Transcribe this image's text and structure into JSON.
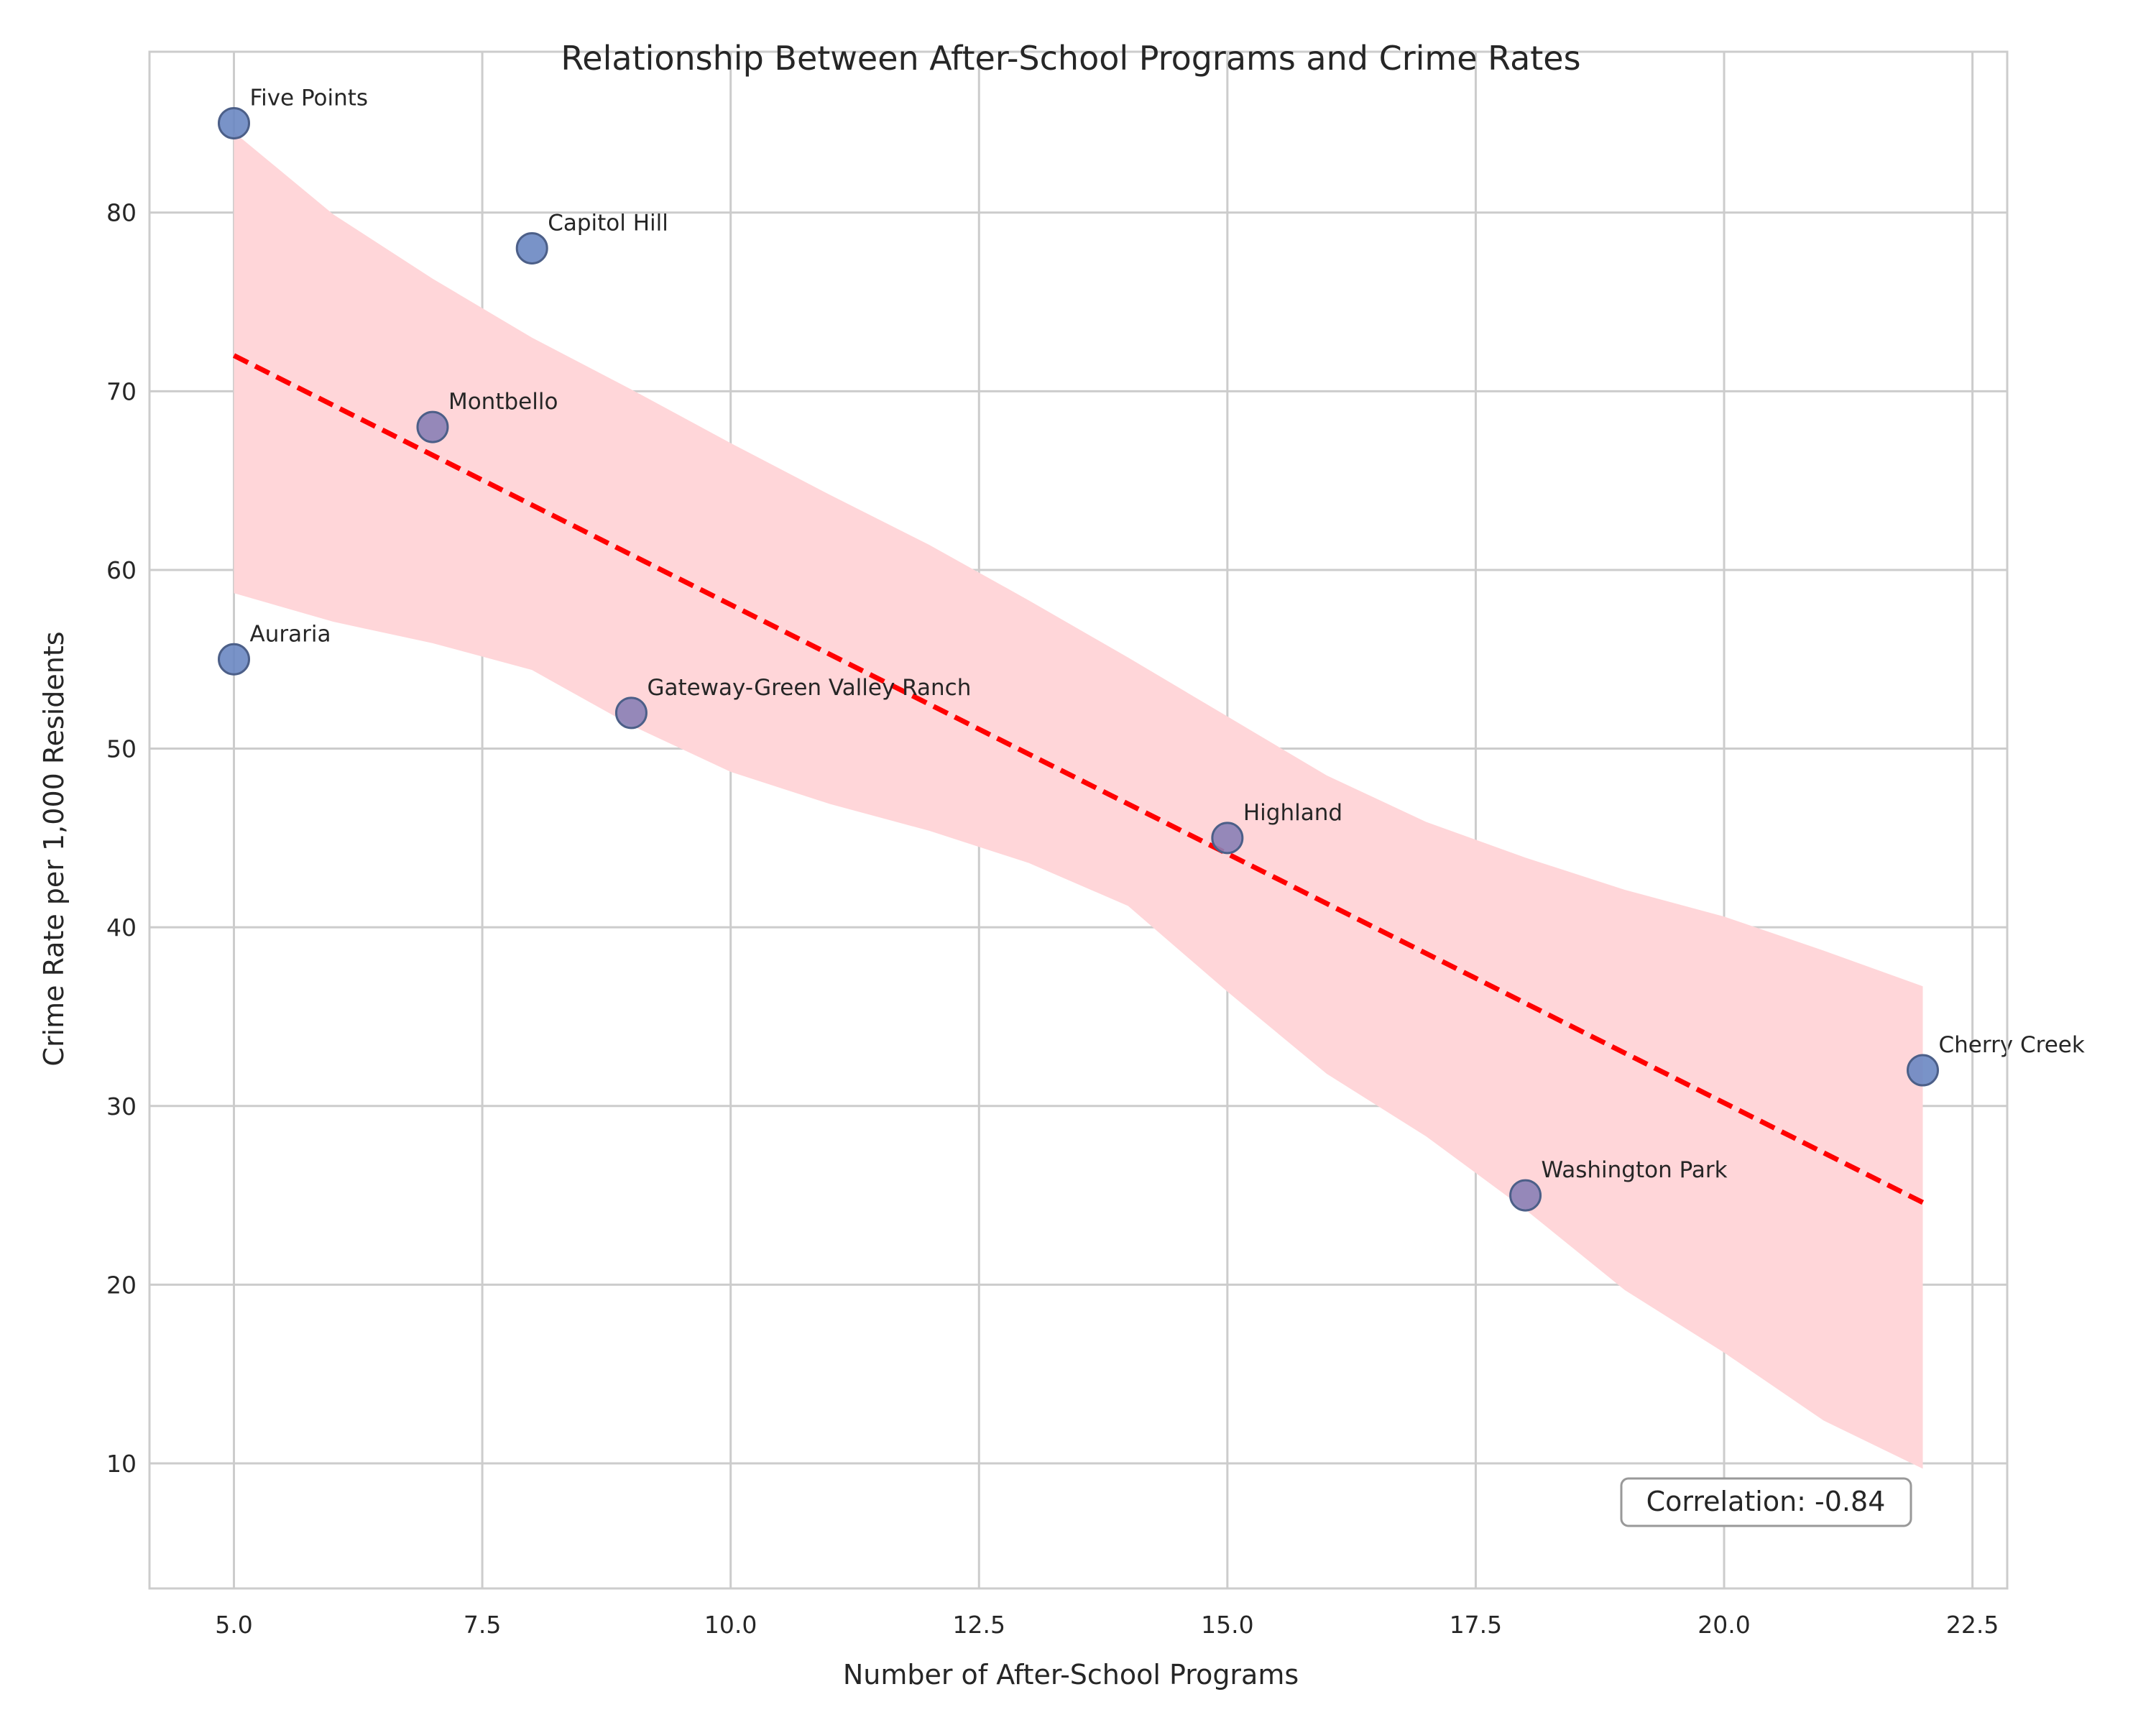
{
  "chart_data": {
    "type": "scatter",
    "title": "Relationship Between After-School Programs and Crime Rates",
    "xlabel": "Number of After-School Programs",
    "ylabel": "Crime Rate per 1,000 Residents",
    "xlim": [
      4.15,
      22.85
    ],
    "ylim": [
      3.0,
      89.0
    ],
    "xticks": [
      5.0,
      7.5,
      10.0,
      12.5,
      15.0,
      17.5,
      20.0,
      22.5
    ],
    "xtick_labels": [
      "5.0",
      "7.5",
      "10.0",
      "12.5",
      "15.0",
      "17.5",
      "20.0",
      "22.5"
    ],
    "yticks": [
      10,
      20,
      30,
      40,
      50,
      60,
      70,
      80
    ],
    "ytick_labels": [
      "10",
      "20",
      "30",
      "40",
      "50",
      "60",
      "70",
      "80"
    ],
    "grid": true,
    "points": [
      {
        "label": "Five Points",
        "x": 5,
        "y": 85,
        "color": "#6a87c2"
      },
      {
        "label": "Capitol Hill",
        "x": 8,
        "y": 78,
        "color": "#6a87c2"
      },
      {
        "label": "Montbello",
        "x": 7,
        "y": 68,
        "color": "#8a80b5"
      },
      {
        "label": "Auraria",
        "x": 5,
        "y": 55,
        "color": "#6a87c2"
      },
      {
        "label": "Gateway-Green Valley Ranch",
        "x": 9,
        "y": 52,
        "color": "#8a80b5"
      },
      {
        "label": "Highland",
        "x": 15,
        "y": 45,
        "color": "#8a80b5"
      },
      {
        "label": "Cherry Creek",
        "x": 22,
        "y": 32,
        "color": "#6a87c2"
      },
      {
        "label": "Washington Park",
        "x": 18,
        "y": 25,
        "color": "#8a80b5"
      }
    ],
    "regression": {
      "color": "#ff0000",
      "x": [
        5,
        22
      ],
      "y": [
        72.0,
        24.6
      ]
    },
    "confidence_band": {
      "color": "#ffd6d9",
      "x": [
        5,
        6,
        7,
        8,
        9,
        10,
        11,
        12,
        13,
        14,
        15,
        16,
        17,
        18,
        19,
        20,
        21,
        22
      ],
      "upper": [
        84.5,
        79.9,
        76.3,
        73.0,
        70.1,
        67.1,
        64.2,
        61.4,
        58.3,
        55.1,
        51.8,
        48.5,
        45.9,
        43.9,
        42.1,
        40.6,
        38.7,
        36.7
      ],
      "lower": [
        58.7,
        57.1,
        55.9,
        54.4,
        51.3,
        48.7,
        46.9,
        45.4,
        43.6,
        41.2,
        36.4,
        31.8,
        28.3,
        24.2,
        19.7,
        16.2,
        12.4,
        9.7
      ]
    },
    "annotation": {
      "text": "Correlation: -0.84",
      "position": "bottom-right"
    }
  }
}
